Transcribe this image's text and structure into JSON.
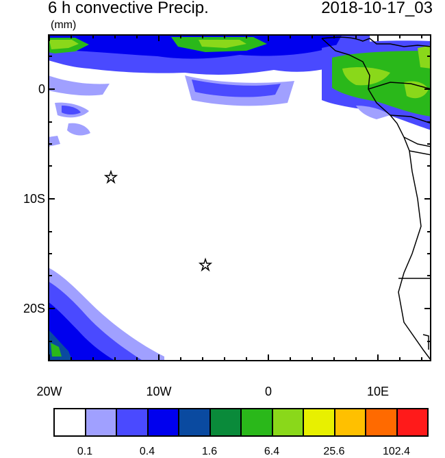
{
  "title_left": "6 h convective Precip.",
  "title_right": "2018-10-17_03",
  "units": "(mm)",
  "y_ticks": [
    "0",
    "10S",
    "20S"
  ],
  "x_ticks": [
    "20W",
    "10W",
    "0",
    "10E"
  ],
  "colorbar": {
    "colors": [
      "#ffffff",
      "#a0a0ff",
      "#4a4aff",
      "#0000ee",
      "#0a4aa0",
      "#0a8a3a",
      "#2ab81a",
      "#8ad81a",
      "#e8f000",
      "#ffc000",
      "#ff6a00",
      "#ff1a1a"
    ],
    "labels": [
      "0.1",
      "0.4",
      "1.6",
      "6.4",
      "25.6",
      "102.4"
    ]
  },
  "markers": [
    {
      "name": "star",
      "lon": -14.5,
      "lat": -8
    },
    {
      "name": "star",
      "lon": -5.8,
      "lat": -16
    }
  ]
}
